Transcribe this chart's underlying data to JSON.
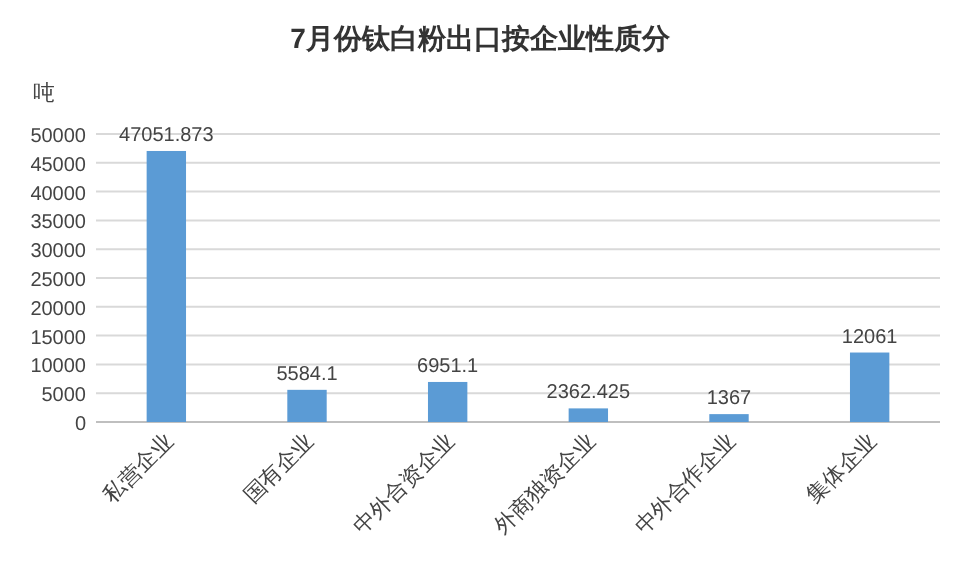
{
  "chart_data": {
    "type": "bar",
    "title": "7月份钛白粉出口按企业性质分",
    "ylabel": "吨",
    "categories": [
      "私营企业",
      "国有企业",
      "中外合资企业",
      "外商独资企业",
      "中外合作企业",
      "集体企业"
    ],
    "values": [
      47051.873,
      5584.1,
      6951.1,
      2362.425,
      1367,
      12061
    ],
    "value_labels": [
      "47051.873",
      "5584.1",
      "6951.1",
      "2362.425",
      "1367",
      "12061"
    ],
    "color": "#5b9bd5",
    "ylim": [
      0,
      50000
    ],
    "yticks": [
      0,
      5000,
      10000,
      15000,
      20000,
      25000,
      30000,
      35000,
      40000,
      45000,
      50000
    ],
    "grid": "y"
  }
}
